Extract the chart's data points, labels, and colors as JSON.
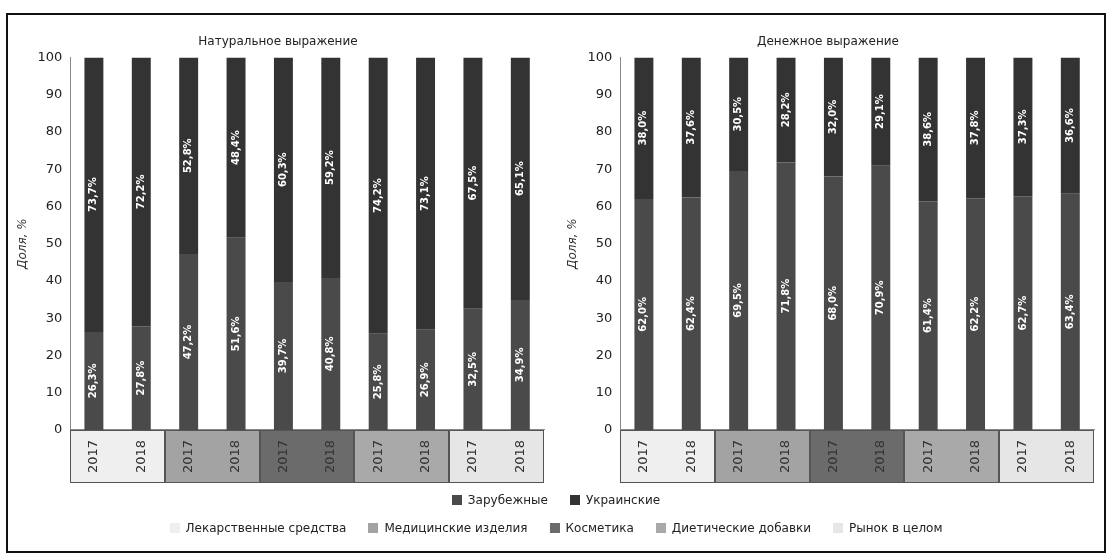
{
  "chart_data": [
    {
      "type": "bar",
      "title": "Натуральное выражение",
      "ylabel": "Доля, %",
      "stacked": true,
      "legend": "bottom",
      "grid": false,
      "categories": [
        "2017",
        "2018",
        "2017",
        "2018",
        "2017",
        "2018",
        "2017",
        "2018",
        "2017",
        "2018"
      ],
      "ylim": [
        0,
        100
      ],
      "yticks": [
        0,
        10,
        20,
        30,
        40,
        50,
        60,
        70,
        80,
        90,
        100
      ],
      "series": [
        {
          "name": "Зарубежные",
          "color": "#4a4a4a",
          "values": [
            26.3,
            27.8,
            47.2,
            51.6,
            39.7,
            40.8,
            25.8,
            26.9,
            32.5,
            34.9
          ],
          "value_labels": [
            "26,3%",
            "27,8%",
            "47,2%",
            "51,6%",
            "39,7%",
            "40,8%",
            "25,8%",
            "26,9%",
            "32,5%",
            "34,9%"
          ]
        },
        {
          "name": "Украинские",
          "color": "#333333",
          "values": [
            73.7,
            72.2,
            52.8,
            48.4,
            60.3,
            59.2,
            74.2,
            73.1,
            67.5,
            65.1
          ],
          "value_labels": [
            "73,7%",
            "72,2%",
            "52,8%",
            "48,4%",
            "60,3%",
            "59,2%",
            "74,2%",
            "73,1%",
            "67,5%",
            "65,1%"
          ]
        }
      ],
      "annotations": [
        "Лекарственные средства",
        "Медицинские изделия",
        "Косметика",
        "Диетические добавки",
        "Рынок в целом"
      ]
    },
    {
      "type": "bar",
      "title": "Денежное выражение",
      "ylabel": "Доля, %",
      "stacked": true,
      "legend": "bottom",
      "grid": false,
      "categories": [
        "2017",
        "2018",
        "2017",
        "2018",
        "2017",
        "2018",
        "2017",
        "2018",
        "2017",
        "2018"
      ],
      "ylim": [
        0,
        100
      ],
      "yticks": [
        0,
        10,
        20,
        30,
        40,
        50,
        60,
        70,
        80,
        90,
        100
      ],
      "series": [
        {
          "name": "Зарубежные",
          "color": "#4a4a4a",
          "values": [
            62.0,
            62.4,
            69.5,
            71.8,
            68.0,
            70.9,
            61.4,
            62.2,
            62.7,
            63.4
          ],
          "value_labels": [
            "62,0%",
            "62,4%",
            "69,5%",
            "71,8%",
            "68,0%",
            "70,9%",
            "61,4%",
            "62,2%",
            "62,7%",
            "63,4%"
          ]
        },
        {
          "name": "Украинские",
          "color": "#333333",
          "values": [
            38.0,
            37.6,
            30.5,
            28.2,
            32.0,
            29.1,
            38.6,
            37.8,
            37.3,
            36.6
          ],
          "value_labels": [
            "38,0%",
            "37,6%",
            "30,5%",
            "28,2%",
            "32,0%",
            "29,1%",
            "38,6%",
            "37,8%",
            "37,3%",
            "36,6%"
          ]
        }
      ]
    }
  ]
}
